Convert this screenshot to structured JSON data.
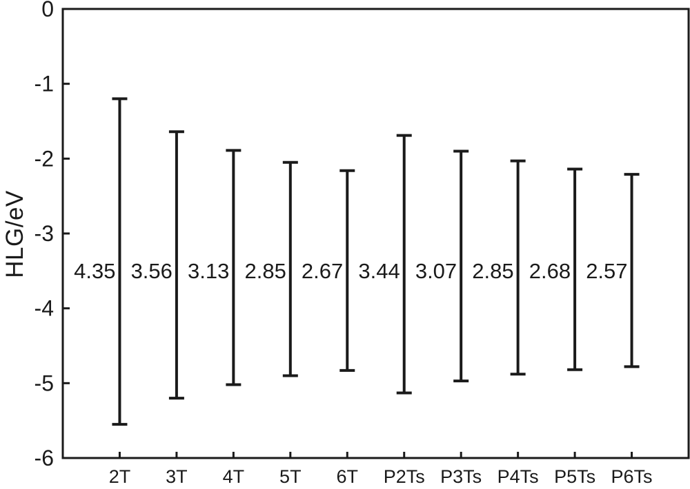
{
  "page": {
    "background": "#ffffff"
  },
  "chart_data": {
    "type": "range-bar",
    "title": "",
    "xlabel": "",
    "ylabel": "HLG/eV",
    "ylim": [
      -6,
      0
    ],
    "ytick_labels": [
      "0",
      "-1",
      "-2",
      "-3",
      "-4",
      "-5",
      "-6"
    ],
    "ytick_values": [
      0,
      -1,
      -2,
      -3,
      -4,
      -5,
      -6
    ],
    "grid": false,
    "legend_position": "none",
    "frame": true,
    "line_color": "#1a1a1a",
    "categories": [
      "2T",
      "3T",
      "4T",
      "5T",
      "6T",
      "P2Ts",
      "P3Ts",
      "P4Ts",
      "P5Ts",
      "P6Ts"
    ],
    "series": [
      {
        "name": "upper_end",
        "values": [
          -1.2,
          -1.64,
          -1.89,
          -2.05,
          -2.16,
          -1.69,
          -1.9,
          -2.03,
          -2.14,
          -2.21
        ]
      },
      {
        "name": "lower_end",
        "values": [
          -5.55,
          -5.2,
          -5.02,
          -4.9,
          -4.83,
          -5.13,
          -4.97,
          -4.88,
          -4.82,
          -4.78
        ]
      }
    ],
    "gap_labels": [
      "4.35",
      "3.56",
      "3.13",
      "2.85",
      "2.67",
      "3.44",
      "3.07",
      "2.85",
      "2.68",
      "2.57"
    ]
  }
}
